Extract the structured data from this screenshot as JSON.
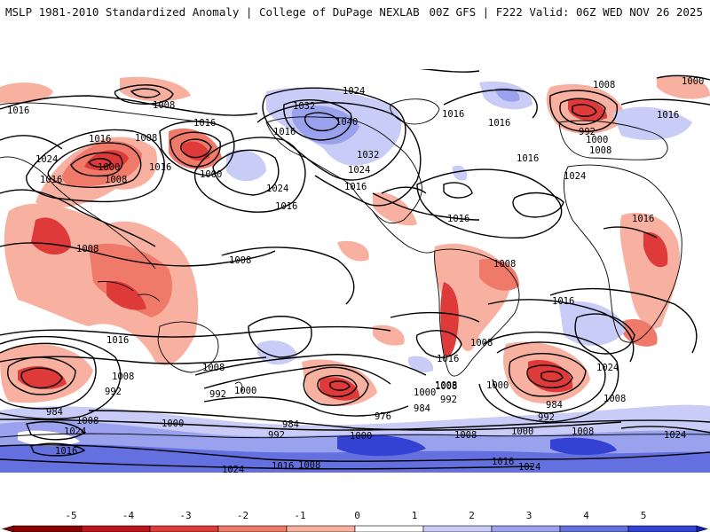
{
  "header": {
    "title": "MSLP 1981-2010 Standardized Anomaly | College of DuPage NEXLAB",
    "run_info": "00Z GFS | F222 Valid: 06Z WED NOV 26 2025"
  },
  "colorbar": {
    "ticks": [
      "-5",
      "-4",
      "-3",
      "-2",
      "-1",
      "0",
      "1",
      "2",
      "3",
      "4",
      "5"
    ],
    "colors": [
      "#8b0000",
      "#c0141c",
      "#de3a3a",
      "#f07a6a",
      "#f8b0a0",
      "#ffffff",
      "#c8ccf6",
      "#9aa2ee",
      "#6470e0",
      "#3442d4",
      "#1020c0"
    ]
  },
  "isobar_labels": [
    {
      "id": "l1",
      "text": "1024"
    },
    {
      "id": "l2",
      "text": "1016"
    },
    {
      "id": "l3",
      "text": "1008"
    },
    {
      "id": "l4",
      "text": "1016"
    },
    {
      "id": "l5",
      "text": "1008"
    },
    {
      "id": "l6",
      "text": "1024"
    },
    {
      "id": "l7",
      "text": "1016"
    },
    {
      "id": "l8",
      "text": "1000"
    },
    {
      "id": "l9",
      "text": "1008"
    },
    {
      "id": "l10",
      "text": "1016"
    },
    {
      "id": "l11",
      "text": "1000"
    },
    {
      "id": "l12",
      "text": "1016"
    },
    {
      "id": "l13",
      "text": "1032"
    },
    {
      "id": "l14",
      "text": "1040"
    },
    {
      "id": "l15",
      "text": "1024"
    },
    {
      "id": "l16",
      "text": "1032"
    },
    {
      "id": "l17",
      "text": "1024"
    },
    {
      "id": "l18",
      "text": "1016"
    },
    {
      "id": "l19",
      "text": "1016"
    },
    {
      "id": "l20",
      "text": "1016"
    },
    {
      "id": "l21",
      "text": "1016"
    },
    {
      "id": "l22",
      "text": "1024"
    },
    {
      "id": "l23",
      "text": "1016"
    },
    {
      "id": "l24",
      "text": "1008"
    },
    {
      "id": "l25",
      "text": "992"
    },
    {
      "id": "l26",
      "text": "1000"
    },
    {
      "id": "l27",
      "text": "1008"
    },
    {
      "id": "l28",
      "text": "1016"
    },
    {
      "id": "l29",
      "text": "1000"
    },
    {
      "id": "l30",
      "text": "1024"
    },
    {
      "id": "l31",
      "text": "1016"
    },
    {
      "id": "l32",
      "text": "1008"
    },
    {
      "id": "l33",
      "text": "1008"
    },
    {
      "id": "l34",
      "text": "1008"
    },
    {
      "id": "l35",
      "text": "1016"
    },
    {
      "id": "l36",
      "text": "1016"
    },
    {
      "id": "l37",
      "text": "1016"
    },
    {
      "id": "l38",
      "text": "1024"
    },
    {
      "id": "l39",
      "text": "1008"
    },
    {
      "id": "l40",
      "text": "1008"
    },
    {
      "id": "l41",
      "text": "1008"
    },
    {
      "id": "l42",
      "text": "1016"
    },
    {
      "id": "l43",
      "text": "1008"
    },
    {
      "id": "l44",
      "text": "992"
    },
    {
      "id": "l45",
      "text": "984"
    },
    {
      "id": "l46",
      "text": "1000"
    },
    {
      "id": "l47",
      "text": "992"
    },
    {
      "id": "l48",
      "text": "984"
    },
    {
      "id": "l49",
      "text": "976"
    },
    {
      "id": "l50",
      "text": "984"
    },
    {
      "id": "l51",
      "text": "992"
    },
    {
      "id": "l52",
      "text": "1008"
    },
    {
      "id": "l53",
      "text": "1000"
    },
    {
      "id": "l54",
      "text": "984"
    },
    {
      "id": "l55",
      "text": "992"
    },
    {
      "id": "l56",
      "text": "1008"
    },
    {
      "id": "l57",
      "text": "1000"
    },
    {
      "id": "l58",
      "text": "1008"
    },
    {
      "id": "l59",
      "text": "1024"
    },
    {
      "id": "l60",
      "text": "1016"
    },
    {
      "id": "l61",
      "text": "1024"
    },
    {
      "id": "l62",
      "text": "1008"
    },
    {
      "id": "l63",
      "text": "1024"
    },
    {
      "id": "l64",
      "text": "1016"
    },
    {
      "id": "l65",
      "text": "1000"
    },
    {
      "id": "l66",
      "text": "992"
    },
    {
      "id": "l67",
      "text": "1000"
    },
    {
      "id": "l68",
      "text": "1000"
    },
    {
      "id": "l69",
      "text": "1008"
    },
    {
      "id": "l70",
      "text": "1016"
    },
    {
      "id": "l71",
      "text": "1008"
    },
    {
      "id": "l72",
      "text": "1016"
    },
    {
      "id": "l73",
      "text": "1024"
    }
  ]
}
